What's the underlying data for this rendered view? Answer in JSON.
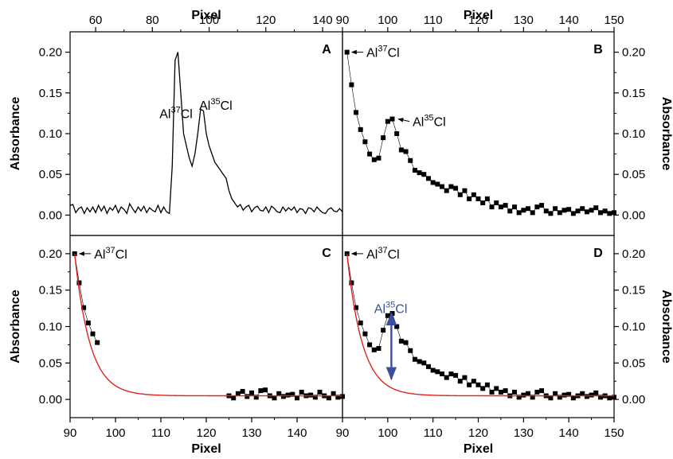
{
  "chart_data": [
    {
      "id": "A",
      "type": "line",
      "title": "",
      "panel_label": "A",
      "xlabel": "Pixel",
      "xlabel_position": "top",
      "ylabel": "Absorbance",
      "ylabel_position": "left",
      "xlim": [
        51,
        147
      ],
      "ylim": [
        -0.025,
        0.225
      ],
      "xticks": [
        60,
        80,
        100,
        120,
        140
      ],
      "yticks": [
        0.0,
        0.05,
        0.1,
        0.15,
        0.2
      ],
      "series": [
        {
          "x": [
            51,
            52,
            53,
            54,
            55,
            56,
            57,
            58,
            59,
            60,
            61,
            62,
            63,
            64,
            65,
            66,
            67,
            68,
            69,
            70,
            71,
            72,
            73,
            74,
            75,
            76,
            77,
            78,
            79,
            80,
            81,
            82,
            83,
            84,
            85,
            86,
            87,
            88,
            89,
            90,
            91,
            92,
            93,
            94,
            95,
            96,
            97,
            98,
            99,
            100,
            101,
            102,
            103,
            104,
            105,
            106,
            107,
            108,
            109,
            110,
            111,
            112,
            113,
            114,
            115,
            116,
            117,
            118,
            119,
            120,
            121,
            122,
            123,
            124,
            125,
            126,
            127,
            128,
            129,
            130,
            131,
            132,
            133,
            134,
            135,
            136,
            137,
            138,
            139,
            140,
            141,
            142,
            143,
            144,
            145,
            146,
            147
          ],
          "y": [
            0.012,
            0.013,
            0.003,
            0.008,
            0.01,
            0.002,
            0.009,
            0.004,
            0.01,
            0.003,
            0.012,
            0.005,
            0.011,
            0.002,
            0.009,
            0.006,
            0.012,
            0.003,
            0.01,
            0.007,
            0.002,
            0.014,
            0.008,
            0.003,
            0.01,
            0.005,
            0.011,
            0.003,
            0.009,
            0.006,
            0.004,
            0.012,
            0.003,
            0.01,
            0.004,
            0.002,
            0.06,
            0.19,
            0.2,
            0.15,
            0.1,
            0.085,
            0.07,
            0.06,
            0.075,
            0.1,
            0.13,
            0.128,
            0.1,
            0.085,
            0.075,
            0.065,
            0.06,
            0.055,
            0.05,
            0.045,
            0.03,
            0.02,
            0.015,
            0.01,
            0.013,
            0.006,
            0.01,
            0.012,
            0.004,
            0.009,
            0.011,
            0.006,
            0.005,
            0.01,
            0.003,
            0.011,
            0.008,
            0.004,
            0.003,
            0.01,
            0.005,
            0.009,
            0.006,
            0.01,
            0.003,
            0.008,
            0.007,
            0.002,
            0.009,
            0.008,
            0.004,
            0.01,
            0.006,
            0.003,
            0.002,
            0.007,
            0.009,
            0.005,
            0.004,
            0.008,
            0.004
          ],
          "color": "#000000",
          "marker": "none"
        }
      ],
      "annotations": [
        {
          "text_base": "Al",
          "text_sup": "37",
          "text_tail": "Cl",
          "x": 82.5,
          "y": 0.125,
          "color": "#000000"
        },
        {
          "text_base": "Al",
          "text_sup": "35",
          "text_tail": "Cl",
          "x": 96.5,
          "y": 0.135,
          "color": "#000000"
        }
      ]
    },
    {
      "id": "B",
      "type": "scatter",
      "title": "",
      "panel_label": "B",
      "xlabel": "Pixel",
      "xlabel_position": "top",
      "ylabel": "Absorbance",
      "ylabel_position": "right",
      "xlim": [
        90,
        150
      ],
      "ylim": [
        -0.025,
        0.225
      ],
      "xticks": [
        90,
        100,
        110,
        120,
        130,
        140,
        150
      ],
      "yticks": [
        0.0,
        0.05,
        0.1,
        0.15,
        0.2
      ],
      "series": [
        {
          "x": [
            91,
            92,
            93,
            94,
            95,
            96,
            97,
            98,
            99,
            100,
            101,
            102,
            103,
            104,
            105,
            106,
            107,
            108,
            109,
            110,
            111,
            112,
            113,
            114,
            115,
            116,
            117,
            118,
            119,
            120,
            121,
            122,
            123,
            124,
            125,
            126,
            127,
            128,
            129,
            130,
            131,
            132,
            133,
            134,
            135,
            136,
            137,
            138,
            139,
            140,
            141,
            142,
            143,
            144,
            145,
            146,
            147,
            148,
            149,
            150
          ],
          "y": [
            0.2,
            0.16,
            0.126,
            0.105,
            0.09,
            0.075,
            0.068,
            0.07,
            0.095,
            0.115,
            0.118,
            0.1,
            0.08,
            0.078,
            0.067,
            0.055,
            0.052,
            0.05,
            0.045,
            0.04,
            0.038,
            0.035,
            0.03,
            0.035,
            0.033,
            0.025,
            0.03,
            0.02,
            0.025,
            0.02,
            0.015,
            0.02,
            0.01,
            0.015,
            0.01,
            0.012,
            0.005,
            0.01,
            0.003,
            0.006,
            0.008,
            0.003,
            0.01,
            0.012,
            0.005,
            0.002,
            0.008,
            0.003,
            0.006,
            0.007,
            0.002,
            0.005,
            0.008,
            0.004,
            0.006,
            0.009,
            0.003,
            0.005,
            0.002,
            0.003
          ],
          "color": "#000000",
          "marker": "square",
          "connected": true
        }
      ],
      "annotations": [
        {
          "text_base": "Al",
          "text_sup": "37",
          "text_tail": "Cl",
          "x": 95.3,
          "y": 0.2,
          "color": "#000000",
          "arrow_to": [
            91.5,
            0.2
          ]
        },
        {
          "text_base": "Al",
          "text_sup": "35",
          "text_tail": "Cl",
          "x": 105.5,
          "y": 0.115,
          "color": "#000000",
          "arrow_to": [
            101.8,
            0.118
          ]
        }
      ]
    },
    {
      "id": "C",
      "type": "scatter",
      "title": "",
      "panel_label": "C",
      "xlabel": "Pixel",
      "xlabel_position": "bottom",
      "ylabel": "Absorbance",
      "ylabel_position": "left",
      "xlim": [
        90,
        150
      ],
      "ylim": [
        -0.025,
        0.225
      ],
      "xticks": [
        90,
        100,
        110,
        120,
        130,
        140
      ],
      "yticks": [
        0.0,
        0.05,
        0.1,
        0.15,
        0.2
      ],
      "series": [
        {
          "x": [
            91,
            92,
            93,
            94,
            95,
            96,
            125,
            126,
            127,
            128,
            129,
            130,
            131,
            132,
            133,
            134,
            135,
            136,
            137,
            138,
            139,
            140,
            141,
            142,
            143,
            144,
            145,
            146,
            147,
            148,
            149,
            150
          ],
          "y": [
            0.2,
            0.16,
            0.126,
            0.105,
            0.09,
            0.078,
            0.005,
            0.002,
            0.008,
            0.011,
            0.004,
            0.009,
            0.003,
            0.012,
            0.013,
            0.005,
            0.002,
            0.008,
            0.004,
            0.006,
            0.007,
            0.002,
            0.01,
            0.005,
            0.006,
            0.003,
            0.01,
            0.005,
            0.002,
            0.008,
            0.003,
            0.004
          ],
          "color": "#000000",
          "marker": "square",
          "connected": true
        },
        {
          "fit": "exponential",
          "x_start": 91,
          "x_end": 150,
          "y0": 0.005,
          "amplitude": 0.195,
          "tau": 3.4,
          "color": "#e0231e"
        }
      ],
      "annotations": [
        {
          "text_base": "Al",
          "text_sup": "37",
          "text_tail": "Cl",
          "x": 95.3,
          "y": 0.2,
          "color": "#000000",
          "arrow_to": [
            91.5,
            0.2
          ]
        }
      ]
    },
    {
      "id": "D",
      "type": "scatter",
      "title": "",
      "panel_label": "D",
      "xlabel": "Pixel",
      "xlabel_position": "bottom",
      "ylabel": "Absorbance",
      "ylabel_position": "right",
      "xlim": [
        90,
        150
      ],
      "ylim": [
        -0.025,
        0.225
      ],
      "xticks": [
        90,
        100,
        110,
        120,
        130,
        140,
        150
      ],
      "yticks": [
        0.0,
        0.05,
        0.1,
        0.15,
        0.2
      ],
      "series": [
        {
          "x": [
            91,
            92,
            93,
            94,
            95,
            96,
            97,
            98,
            99,
            100,
            101,
            102,
            103,
            104,
            105,
            106,
            107,
            108,
            109,
            110,
            111,
            112,
            113,
            114,
            115,
            116,
            117,
            118,
            119,
            120,
            121,
            122,
            123,
            124,
            125,
            126,
            127,
            128,
            129,
            130,
            131,
            132,
            133,
            134,
            135,
            136,
            137,
            138,
            139,
            140,
            141,
            142,
            143,
            144,
            145,
            146,
            147,
            148,
            149,
            150
          ],
          "y": [
            0.2,
            0.16,
            0.126,
            0.105,
            0.09,
            0.075,
            0.068,
            0.07,
            0.095,
            0.115,
            0.118,
            0.1,
            0.08,
            0.078,
            0.067,
            0.055,
            0.052,
            0.05,
            0.045,
            0.04,
            0.038,
            0.035,
            0.03,
            0.035,
            0.033,
            0.025,
            0.03,
            0.02,
            0.025,
            0.02,
            0.015,
            0.02,
            0.01,
            0.015,
            0.01,
            0.012,
            0.005,
            0.01,
            0.003,
            0.006,
            0.008,
            0.003,
            0.01,
            0.012,
            0.005,
            0.002,
            0.008,
            0.003,
            0.006,
            0.007,
            0.002,
            0.005,
            0.008,
            0.004,
            0.006,
            0.009,
            0.003,
            0.005,
            0.002,
            0.003
          ],
          "color": "#000000",
          "marker": "square",
          "connected": true
        },
        {
          "fit": "exponential",
          "x_start": 91,
          "x_end": 150,
          "y0": 0.005,
          "amplitude": 0.195,
          "tau": 3.4,
          "color": "#e0231e"
        }
      ],
      "annotations": [
        {
          "text_base": "Al",
          "text_sup": "37",
          "text_tail": "Cl",
          "x": 95.3,
          "y": 0.2,
          "color": "#000000",
          "arrow_to": [
            91.5,
            0.2
          ]
        },
        {
          "text_base": "Al",
          "text_sup": "35",
          "text_tail": "Cl",
          "x": 97.0,
          "y": 0.125,
          "color": "#3a4fa0"
        }
      ],
      "double_arrow": {
        "x": 100.8,
        "y_top": 0.118,
        "y_bottom": 0.028,
        "color": "#3a4fa0"
      }
    }
  ]
}
